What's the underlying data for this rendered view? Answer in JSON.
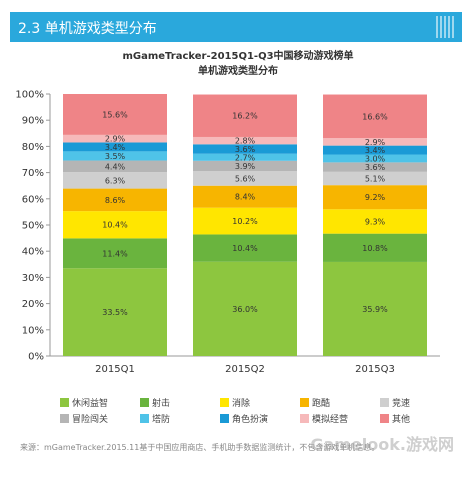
{
  "header": {
    "title": "2.3 单机游戏类型分布"
  },
  "chart_data": {
    "type": "bar",
    "stacked": true,
    "title": "mGameTracker-2015Q1-Q3中国移动游戏榜单",
    "subtitle": "单机游戏类型分布",
    "categories": [
      "2015Q1",
      "2015Q2",
      "2015Q3"
    ],
    "ylim": [
      0,
      100
    ],
    "yticks": [
      "0%",
      "10%",
      "20%",
      "30%",
      "40%",
      "50%",
      "60%",
      "70%",
      "80%",
      "90%",
      "100%"
    ],
    "grid": false,
    "legend_position": "bottom",
    "series": [
      {
        "name": "休闲益智",
        "color": "#8dc63f",
        "values": [
          33.5,
          36.0,
          35.9
        ],
        "labels": [
          "33.5%",
          "36.0%",
          "35.9%"
        ]
      },
      {
        "name": "射击",
        "color": "#6ab43e",
        "values": [
          11.4,
          10.4,
          10.8
        ],
        "labels": [
          "11.4%",
          "10.4%",
          "10.8%"
        ]
      },
      {
        "name": "消除",
        "color": "#ffe600",
        "values": [
          10.4,
          10.2,
          9.3
        ],
        "labels": [
          "10.4%",
          "10.2%",
          "9.3%"
        ]
      },
      {
        "name": "跑酷",
        "color": "#f7b500",
        "values": [
          8.6,
          8.4,
          9.2
        ],
        "labels": [
          "8.6%",
          "8.4%",
          "9.2%"
        ]
      },
      {
        "name": "竞速",
        "color": "#cfcfcf",
        "values": [
          6.3,
          5.6,
          5.1
        ],
        "labels": [
          "6.3%",
          "5.6%",
          "5.1%"
        ]
      },
      {
        "name": "冒险闯关",
        "color": "#b5b5b5",
        "values": [
          4.4,
          3.9,
          3.6
        ],
        "labels": [
          "4.4%",
          "3.9%",
          "3.6%"
        ]
      },
      {
        "name": "塔防",
        "color": "#4fc3e8",
        "values": [
          3.5,
          2.7,
          3.0
        ],
        "labels": [
          "3.5%",
          "2.7%",
          "3.0%"
        ]
      },
      {
        "name": "角色扮演",
        "color": "#1a9ad6",
        "values": [
          3.4,
          3.6,
          3.4
        ],
        "labels": [
          "3.4%",
          "3.6%",
          "3.4%"
        ]
      },
      {
        "name": "模拟经营",
        "color": "#f6b9ba",
        "values": [
          2.9,
          2.8,
          2.9
        ],
        "labels": [
          "2.9%",
          "2.8%",
          "2.9%"
        ]
      },
      {
        "name": "其他",
        "color": "#ef8487",
        "values": [
          15.6,
          16.2,
          16.6
        ],
        "labels": [
          "15.6%",
          "16.2%",
          "16.6%"
        ]
      }
    ]
  },
  "footnote": "来源：mGameTracker.2015.11基于中国应用商店、手机助手数据监测统计，不包含游戏单机信息。",
  "watermark": "Gamelook.游戏网"
}
